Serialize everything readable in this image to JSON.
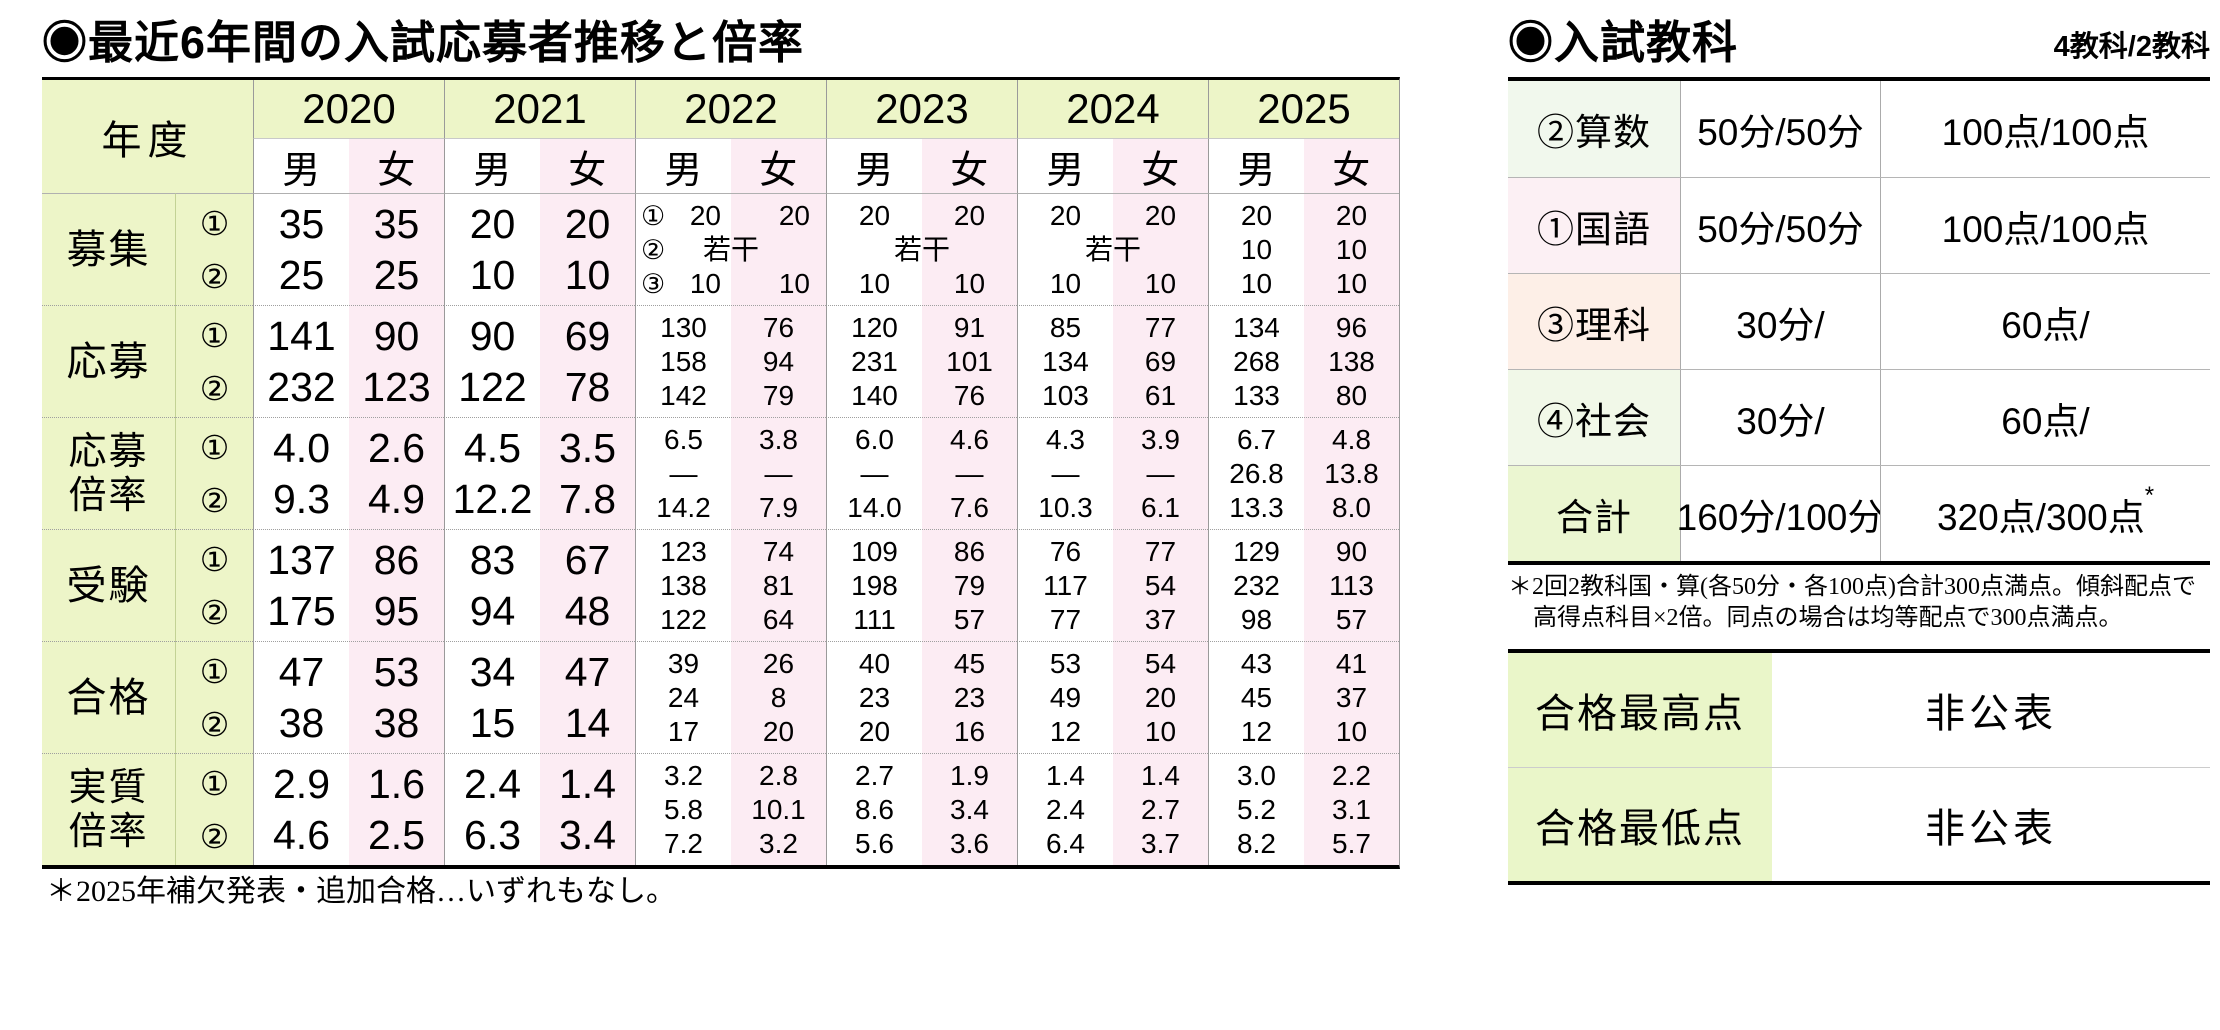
{
  "colors": {
    "table_green": "#edf5c8",
    "female_pink": "#fcecf3",
    "results_label_green": "#eaf6c9",
    "border_black": "#000000",
    "grid_line_gray": "#9a9a9a"
  },
  "left": {
    "title_bullet": "◉",
    "title": "最近6年間の入試応募者推移と倍率",
    "footnote": "＊2025年補欠発表・追加合格…いずれもなし。",
    "table": {
      "corner_label": "年度",
      "gender_headers": [
        "男",
        "女"
      ],
      "round_labels": [
        "①",
        "②"
      ],
      "years": [
        "2020",
        "2021",
        "2022",
        "2023",
        "2024",
        "2025"
      ],
      "rows": [
        {
          "label": [
            "募集"
          ],
          "cells": [
            {
              "lines": [
                [
                  "35",
                  "35"
                ],
                [
                  "25",
                  "25"
                ]
              ]
            },
            {
              "lines": [
                [
                  "20",
                  "20"
                ],
                [
                  "10",
                  "10"
                ]
              ]
            },
            {
              "lines": [
                [
                  "20",
                  "20"
                ],
                "若干",
                [
                  "10",
                  "10"
                ]
              ],
              "circles": [
                "①",
                "②",
                "③"
              ]
            },
            {
              "lines": [
                [
                  "20",
                  "20"
                ],
                "若干",
                [
                  "10",
                  "10"
                ]
              ]
            },
            {
              "lines": [
                [
                  "20",
                  "20"
                ],
                "若干",
                [
                  "10",
                  "10"
                ]
              ]
            },
            {
              "lines": [
                [
                  "20",
                  "20"
                ],
                [
                  "10",
                  "10"
                ],
                [
                  "10",
                  "10"
                ]
              ]
            }
          ]
        },
        {
          "label": [
            "応募"
          ],
          "cells": [
            {
              "lines": [
                [
                  "141",
                  "90"
                ],
                [
                  "232",
                  "123"
                ]
              ]
            },
            {
              "lines": [
                [
                  "90",
                  "69"
                ],
                [
                  "122",
                  "78"
                ]
              ]
            },
            {
              "lines": [
                [
                  "130",
                  "76"
                ],
                [
                  "158",
                  "94"
                ],
                [
                  "142",
                  "79"
                ]
              ]
            },
            {
              "lines": [
                [
                  "120",
                  "91"
                ],
                [
                  "231",
                  "101"
                ],
                [
                  "140",
                  "76"
                ]
              ]
            },
            {
              "lines": [
                [
                  "85",
                  "77"
                ],
                [
                  "134",
                  "69"
                ],
                [
                  "103",
                  "61"
                ]
              ]
            },
            {
              "lines": [
                [
                  "134",
                  "96"
                ],
                [
                  "268",
                  "138"
                ],
                [
                  "133",
                  "80"
                ]
              ]
            }
          ]
        },
        {
          "label": [
            "応募",
            "倍率"
          ],
          "cells": [
            {
              "lines": [
                [
                  "4.0",
                  "2.6"
                ],
                [
                  "9.3",
                  "4.9"
                ]
              ]
            },
            {
              "lines": [
                [
                  "4.5",
                  "3.5"
                ],
                [
                  "12.2",
                  "7.8"
                ]
              ]
            },
            {
              "lines": [
                [
                  "6.5",
                  "3.8"
                ],
                [
                  "—",
                  "—"
                ],
                [
                  "14.2",
                  "7.9"
                ]
              ]
            },
            {
              "lines": [
                [
                  "6.0",
                  "4.6"
                ],
                [
                  "—",
                  "—"
                ],
                [
                  "14.0",
                  "7.6"
                ]
              ]
            },
            {
              "lines": [
                [
                  "4.3",
                  "3.9"
                ],
                [
                  "—",
                  "—"
                ],
                [
                  "10.3",
                  "6.1"
                ]
              ]
            },
            {
              "lines": [
                [
                  "6.7",
                  "4.8"
                ],
                [
                  "26.8",
                  "13.8"
                ],
                [
                  "13.3",
                  "8.0"
                ]
              ]
            }
          ]
        },
        {
          "label": [
            "受験"
          ],
          "cells": [
            {
              "lines": [
                [
                  "137",
                  "86"
                ],
                [
                  "175",
                  "95"
                ]
              ]
            },
            {
              "lines": [
                [
                  "83",
                  "67"
                ],
                [
                  "94",
                  "48"
                ]
              ]
            },
            {
              "lines": [
                [
                  "123",
                  "74"
                ],
                [
                  "138",
                  "81"
                ],
                [
                  "122",
                  "64"
                ]
              ]
            },
            {
              "lines": [
                [
                  "109",
                  "86"
                ],
                [
                  "198",
                  "79"
                ],
                [
                  "111",
                  "57"
                ]
              ]
            },
            {
              "lines": [
                [
                  "76",
                  "77"
                ],
                [
                  "117",
                  "54"
                ],
                [
                  "77",
                  "37"
                ]
              ]
            },
            {
              "lines": [
                [
                  "129",
                  "90"
                ],
                [
                  "232",
                  "113"
                ],
                [
                  "98",
                  "57"
                ]
              ]
            }
          ]
        },
        {
          "label": [
            "合格"
          ],
          "cells": [
            {
              "lines": [
                [
                  "47",
                  "53"
                ],
                [
                  "38",
                  "38"
                ]
              ]
            },
            {
              "lines": [
                [
                  "34",
                  "47"
                ],
                [
                  "15",
                  "14"
                ]
              ]
            },
            {
              "lines": [
                [
                  "39",
                  "26"
                ],
                [
                  "24",
                  "8"
                ],
                [
                  "17",
                  "20"
                ]
              ]
            },
            {
              "lines": [
                [
                  "40",
                  "45"
                ],
                [
                  "23",
                  "23"
                ],
                [
                  "20",
                  "16"
                ]
              ]
            },
            {
              "lines": [
                [
                  "53",
                  "54"
                ],
                [
                  "49",
                  "20"
                ],
                [
                  "12",
                  "10"
                ]
              ]
            },
            {
              "lines": [
                [
                  "43",
                  "41"
                ],
                [
                  "45",
                  "37"
                ],
                [
                  "12",
                  "10"
                ]
              ]
            }
          ]
        },
        {
          "label": [
            "実質",
            "倍率"
          ],
          "cells": [
            {
              "lines": [
                [
                  "2.9",
                  "1.6"
                ],
                [
                  "4.6",
                  "2.5"
                ]
              ]
            },
            {
              "lines": [
                [
                  "2.4",
                  "1.4"
                ],
                [
                  "6.3",
                  "3.4"
                ]
              ]
            },
            {
              "lines": [
                [
                  "3.2",
                  "2.8"
                ],
                [
                  "5.8",
                  "10.1"
                ],
                [
                  "7.2",
                  "3.2"
                ]
              ]
            },
            {
              "lines": [
                [
                  "2.7",
                  "1.9"
                ],
                [
                  "8.6",
                  "3.4"
                ],
                [
                  "5.6",
                  "3.6"
                ]
              ]
            },
            {
              "lines": [
                [
                  "1.4",
                  "1.4"
                ],
                [
                  "2.4",
                  "2.7"
                ],
                [
                  "6.4",
                  "3.7"
                ]
              ]
            },
            {
              "lines": [
                [
                  "3.0",
                  "2.2"
                ],
                [
                  "5.2",
                  "3.1"
                ],
                [
                  "8.2",
                  "5.7"
                ]
              ]
            }
          ]
        }
      ]
    }
  },
  "right": {
    "title_bullet": "◉",
    "title": "入試教科",
    "corner_label": "4教科/2教科",
    "subjects": [
      {
        "label": "②算数",
        "time": "50分/50分",
        "points": "100点/100点",
        "bg": "#f1f8ed"
      },
      {
        "label": "①国語",
        "time": "50分/50分",
        "points": "100点/100点",
        "bg": "#fcf0f4"
      },
      {
        "label": "③理科",
        "time": "30分/",
        "points": "60点/",
        "bg": "#fdefe7"
      },
      {
        "label": "④社会",
        "time": "30分/",
        "points": "60点/",
        "bg": "#f1f8e8"
      },
      {
        "label": "合計",
        "time": "160分/100分",
        "points": "320点/300点",
        "points_sup": "*",
        "bg": "#ebf6d1"
      }
    ],
    "footnote": "＊2回2教科国・算(各50分・各100点)合計300点満点。傾斜配点で高得点科目×2倍。同点の場合は均等配点で300点満点。",
    "results": [
      {
        "label": "合格最高点",
        "value": "非公表"
      },
      {
        "label": "合格最低点",
        "value": "非公表"
      }
    ]
  }
}
